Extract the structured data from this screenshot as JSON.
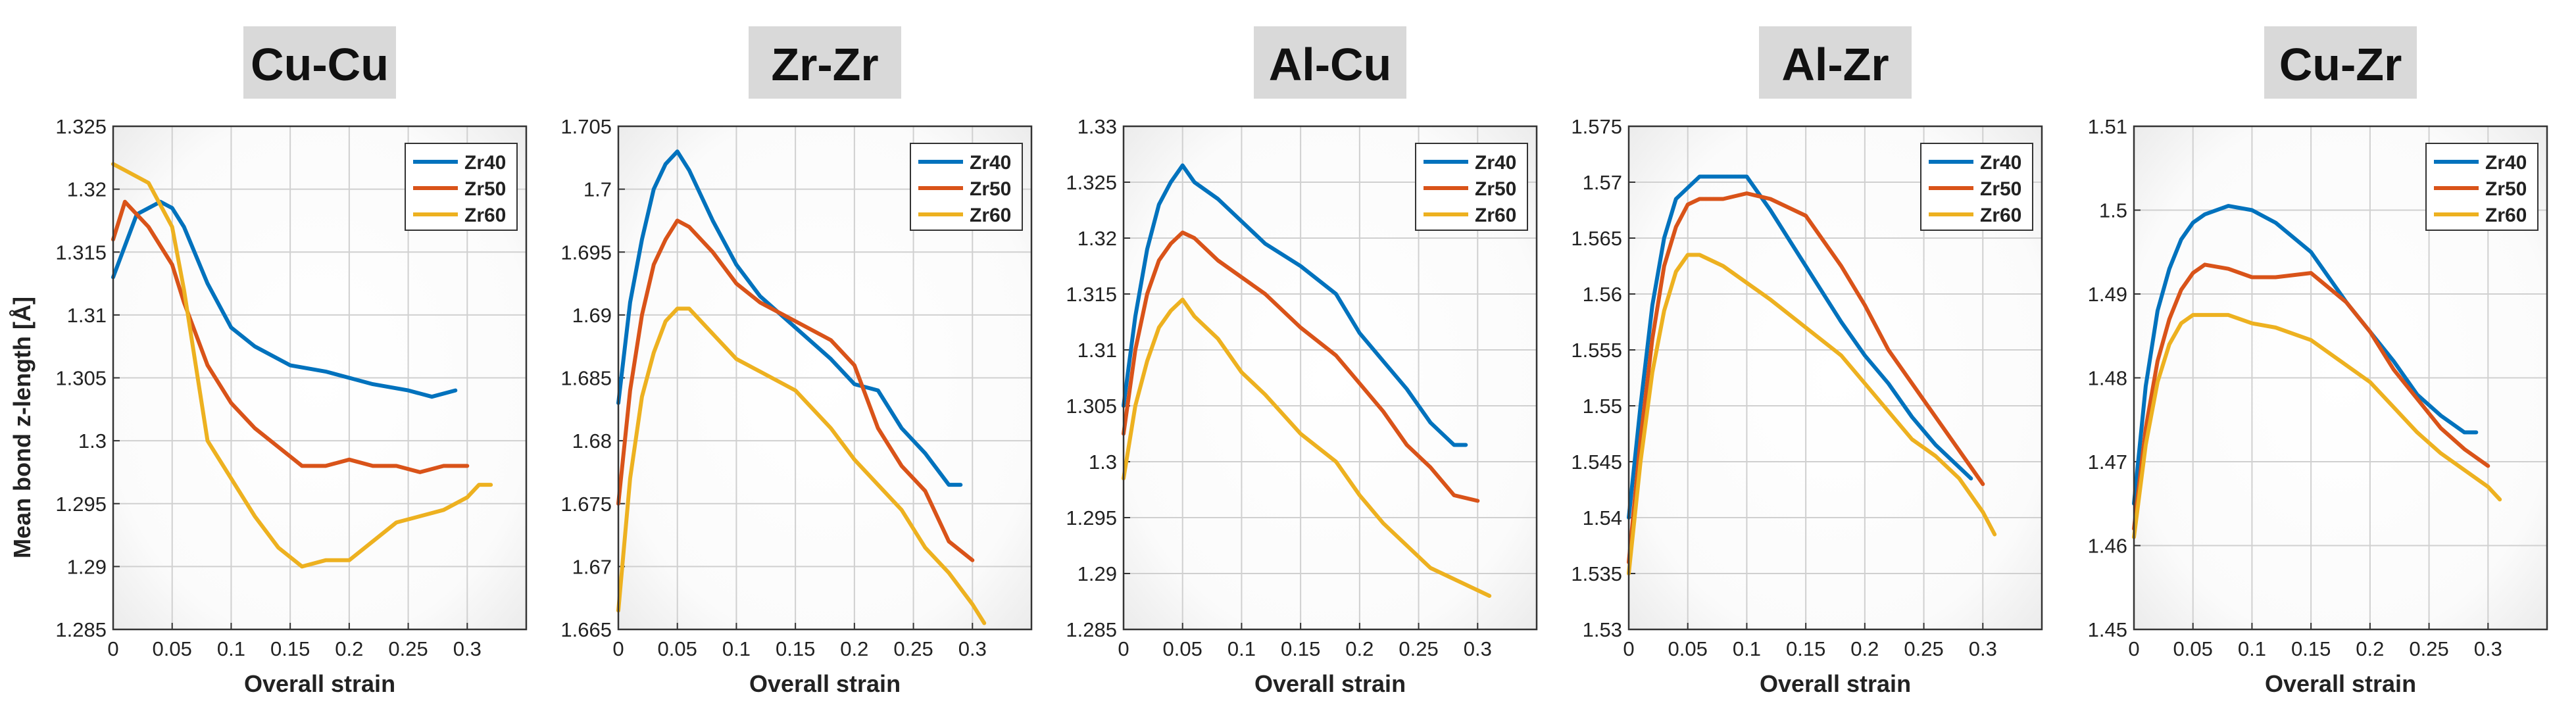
{
  "figure": {
    "ylabel": "Mean bond z-length  [Å]"
  },
  "chart_data": [
    {
      "type": "line",
      "title": "Cu-Cu",
      "xlabel": "Overall strain",
      "ylabel": "Mean bond z-length  [Å]",
      "xlim": [
        0,
        0.35
      ],
      "ylim": [
        1.285,
        1.325
      ],
      "xticks": [
        "0",
        "0.05",
        "0.1",
        "0.15",
        "0.2",
        "0.25",
        "0.3"
      ],
      "yticks": [
        "1.285",
        "1.29",
        "1.295",
        "1.3",
        "1.305",
        "1.31",
        "1.315",
        "1.32",
        "1.325"
      ],
      "grid": true,
      "legend": "top-right",
      "series": [
        {
          "name": "Zr40",
          "color": "#0072BD",
          "x": [
            0,
            0.02,
            0.04,
            0.05,
            0.06,
            0.08,
            0.1,
            0.12,
            0.15,
            0.18,
            0.2,
            0.22,
            0.25,
            0.27,
            0.29
          ],
          "y": [
            1.313,
            1.318,
            1.319,
            1.3185,
            1.317,
            1.3125,
            1.309,
            1.3075,
            1.306,
            1.3055,
            1.305,
            1.3045,
            1.304,
            1.3035,
            1.304
          ]
        },
        {
          "name": "Zr50",
          "color": "#D95319",
          "x": [
            0,
            0.01,
            0.03,
            0.05,
            0.06,
            0.08,
            0.1,
            0.12,
            0.14,
            0.16,
            0.18,
            0.2,
            0.22,
            0.24,
            0.26,
            0.28,
            0.3
          ],
          "y": [
            1.316,
            1.319,
            1.317,
            1.314,
            1.311,
            1.306,
            1.303,
            1.301,
            1.2995,
            1.298,
            1.298,
            1.2985,
            1.298,
            1.298,
            1.2975,
            1.298,
            1.298
          ]
        },
        {
          "name": "Zr60",
          "color": "#EDB120",
          "x": [
            0,
            0.01,
            0.03,
            0.05,
            0.06,
            0.07,
            0.08,
            0.1,
            0.12,
            0.14,
            0.16,
            0.18,
            0.2,
            0.22,
            0.24,
            0.26,
            0.28,
            0.3,
            0.31,
            0.32
          ],
          "y": [
            1.322,
            1.3215,
            1.3205,
            1.317,
            1.312,
            1.306,
            1.3,
            1.297,
            1.294,
            1.2915,
            1.29,
            1.2905,
            1.2905,
            1.292,
            1.2935,
            1.294,
            1.2945,
            1.2955,
            1.2965,
            1.2965
          ]
        }
      ]
    },
    {
      "type": "line",
      "title": "Zr-Zr",
      "xlabel": "Overall strain",
      "ylabel": "",
      "xlim": [
        0,
        0.35
      ],
      "ylim": [
        1.665,
        1.705
      ],
      "xticks": [
        "0",
        "0.05",
        "0.1",
        "0.15",
        "0.2",
        "0.25",
        "0.3"
      ],
      "yticks": [
        "1.665",
        "1.67",
        "1.675",
        "1.68",
        "1.685",
        "1.69",
        "1.695",
        "1.7",
        "1.705"
      ],
      "grid": true,
      "legend": "top-right",
      "series": [
        {
          "name": "Zr40",
          "color": "#0072BD",
          "x": [
            0,
            0.01,
            0.02,
            0.03,
            0.04,
            0.05,
            0.06,
            0.08,
            0.1,
            0.12,
            0.15,
            0.18,
            0.2,
            0.22,
            0.24,
            0.26,
            0.28,
            0.29
          ],
          "y": [
            1.683,
            1.691,
            1.696,
            1.7,
            1.702,
            1.703,
            1.7015,
            1.6975,
            1.694,
            1.6915,
            1.689,
            1.6865,
            1.6845,
            1.684,
            1.681,
            1.679,
            1.6765,
            1.6765
          ]
        },
        {
          "name": "Zr50",
          "color": "#D95319",
          "x": [
            0,
            0.01,
            0.02,
            0.03,
            0.04,
            0.05,
            0.06,
            0.08,
            0.1,
            0.12,
            0.15,
            0.18,
            0.2,
            0.22,
            0.24,
            0.26,
            0.28,
            0.3
          ],
          "y": [
            1.675,
            1.684,
            1.69,
            1.694,
            1.696,
            1.6975,
            1.697,
            1.695,
            1.6925,
            1.691,
            1.6895,
            1.688,
            1.686,
            1.681,
            1.678,
            1.676,
            1.672,
            1.6705
          ]
        },
        {
          "name": "Zr60",
          "color": "#EDB120",
          "x": [
            0,
            0.01,
            0.02,
            0.03,
            0.04,
            0.05,
            0.06,
            0.08,
            0.1,
            0.12,
            0.15,
            0.18,
            0.2,
            0.22,
            0.24,
            0.26,
            0.28,
            0.3,
            0.31
          ],
          "y": [
            1.6665,
            1.677,
            1.6835,
            1.687,
            1.6895,
            1.6905,
            1.6905,
            1.6885,
            1.6865,
            1.6855,
            1.684,
            1.681,
            1.6785,
            1.6765,
            1.6745,
            1.6715,
            1.6695,
            1.667,
            1.6655
          ]
        }
      ]
    },
    {
      "type": "line",
      "title": "Al-Cu",
      "xlabel": "Overall strain",
      "ylabel": "",
      "xlim": [
        0,
        0.35
      ],
      "ylim": [
        1.285,
        1.33
      ],
      "xticks": [
        "0",
        "0.05",
        "0.1",
        "0.15",
        "0.2",
        "0.25",
        "0.3"
      ],
      "yticks": [
        "1.285",
        "1.29",
        "1.295",
        "1.3",
        "1.305",
        "1.31",
        "1.315",
        "1.32",
        "1.325",
        "1.33"
      ],
      "grid": true,
      "legend": "top-right",
      "series": [
        {
          "name": "Zr40",
          "color": "#0072BD",
          "x": [
            0,
            0.01,
            0.02,
            0.03,
            0.04,
            0.05,
            0.06,
            0.08,
            0.1,
            0.12,
            0.15,
            0.18,
            0.2,
            0.22,
            0.24,
            0.26,
            0.28,
            0.29
          ],
          "y": [
            1.305,
            1.313,
            1.319,
            1.323,
            1.325,
            1.3265,
            1.325,
            1.3235,
            1.3215,
            1.3195,
            1.3175,
            1.315,
            1.3115,
            1.309,
            1.3065,
            1.3035,
            1.3015,
            1.3015
          ]
        },
        {
          "name": "Zr50",
          "color": "#D95319",
          "x": [
            0,
            0.01,
            0.02,
            0.03,
            0.04,
            0.05,
            0.06,
            0.08,
            0.1,
            0.12,
            0.15,
            0.18,
            0.2,
            0.22,
            0.24,
            0.26,
            0.28,
            0.3
          ],
          "y": [
            1.3025,
            1.31,
            1.315,
            1.318,
            1.3195,
            1.3205,
            1.32,
            1.318,
            1.3165,
            1.315,
            1.312,
            1.3095,
            1.307,
            1.3045,
            1.3015,
            1.2995,
            1.297,
            1.2965
          ]
        },
        {
          "name": "Zr60",
          "color": "#EDB120",
          "x": [
            0,
            0.01,
            0.02,
            0.03,
            0.04,
            0.05,
            0.06,
            0.08,
            0.1,
            0.12,
            0.15,
            0.18,
            0.2,
            0.22,
            0.24,
            0.26,
            0.28,
            0.3,
            0.31
          ],
          "y": [
            1.2985,
            1.305,
            1.309,
            1.312,
            1.3135,
            1.3145,
            1.313,
            1.311,
            1.308,
            1.306,
            1.3025,
            1.3,
            1.297,
            1.2945,
            1.2925,
            1.2905,
            1.2895,
            1.2885,
            1.288
          ]
        }
      ]
    },
    {
      "type": "line",
      "title": "Al-Zr",
      "xlabel": "Overall strain",
      "ylabel": "",
      "xlim": [
        0,
        0.35
      ],
      "ylim": [
        1.53,
        1.575
      ],
      "xticks": [
        "0",
        "0.05",
        "0.1",
        "0.15",
        "0.2",
        "0.25",
        "0.3"
      ],
      "yticks": [
        "1.53",
        "1.535",
        "1.54",
        "1.545",
        "1.55",
        "1.555",
        "1.56",
        "1.565",
        "1.57",
        "1.575"
      ],
      "grid": true,
      "legend": "top-right",
      "series": [
        {
          "name": "Zr40",
          "color": "#0072BD",
          "x": [
            0,
            0.01,
            0.02,
            0.03,
            0.04,
            0.05,
            0.06,
            0.08,
            0.1,
            0.12,
            0.15,
            0.18,
            0.2,
            0.22,
            0.24,
            0.26,
            0.28,
            0.29
          ],
          "y": [
            1.54,
            1.55,
            1.559,
            1.565,
            1.5685,
            1.5695,
            1.5705,
            1.5705,
            1.5705,
            1.5675,
            1.5625,
            1.5575,
            1.5545,
            1.552,
            1.549,
            1.5465,
            1.5445,
            1.5435
          ]
        },
        {
          "name": "Zr50",
          "color": "#D95319",
          "x": [
            0,
            0.01,
            0.02,
            0.03,
            0.04,
            0.05,
            0.06,
            0.08,
            0.1,
            0.12,
            0.15,
            0.18,
            0.2,
            0.22,
            0.24,
            0.26,
            0.28,
            0.3
          ],
          "y": [
            1.536,
            1.547,
            1.556,
            1.5625,
            1.566,
            1.568,
            1.5685,
            1.5685,
            1.569,
            1.5685,
            1.567,
            1.5625,
            1.559,
            1.555,
            1.552,
            1.549,
            1.546,
            1.543
          ]
        },
        {
          "name": "Zr60",
          "color": "#EDB120",
          "x": [
            0,
            0.01,
            0.02,
            0.03,
            0.04,
            0.05,
            0.06,
            0.08,
            0.1,
            0.12,
            0.15,
            0.18,
            0.2,
            0.22,
            0.24,
            0.26,
            0.28,
            0.3,
            0.31
          ],
          "y": [
            1.535,
            1.545,
            1.553,
            1.5585,
            1.562,
            1.5635,
            1.5635,
            1.5625,
            1.561,
            1.5595,
            1.557,
            1.5545,
            1.552,
            1.5495,
            1.547,
            1.5455,
            1.5435,
            1.5405,
            1.5385
          ]
        }
      ]
    },
    {
      "type": "line",
      "title": "Cu-Zr",
      "xlabel": "Overall strain",
      "ylabel": "",
      "xlim": [
        0,
        0.35
      ],
      "ylim": [
        1.45,
        1.51
      ],
      "xticks": [
        "0",
        "0.05",
        "0.1",
        "0.15",
        "0.2",
        "0.25",
        "0.3"
      ],
      "yticks": [
        "1.45",
        "1.46",
        "1.47",
        "1.48",
        "1.49",
        "1.5",
        "1.51"
      ],
      "grid": true,
      "legend": "top-right",
      "series": [
        {
          "name": "Zr40",
          "color": "#0072BD",
          "x": [
            0,
            0.01,
            0.02,
            0.03,
            0.04,
            0.05,
            0.06,
            0.08,
            0.1,
            0.12,
            0.15,
            0.18,
            0.2,
            0.22,
            0.24,
            0.26,
            0.28,
            0.29
          ],
          "y": [
            1.465,
            1.479,
            1.488,
            1.493,
            1.4965,
            1.4985,
            1.4995,
            1.5005,
            1.5,
            1.4985,
            1.495,
            1.489,
            1.4855,
            1.482,
            1.478,
            1.4755,
            1.4735,
            1.4735
          ]
        },
        {
          "name": "Zr50",
          "color": "#D95319",
          "x": [
            0,
            0.01,
            0.02,
            0.03,
            0.04,
            0.05,
            0.06,
            0.08,
            0.1,
            0.12,
            0.15,
            0.18,
            0.2,
            0.22,
            0.24,
            0.26,
            0.28,
            0.3
          ],
          "y": [
            1.462,
            1.474,
            1.482,
            1.487,
            1.4905,
            1.4925,
            1.4935,
            1.493,
            1.492,
            1.492,
            1.4925,
            1.489,
            1.4855,
            1.481,
            1.4775,
            1.474,
            1.4715,
            1.4695
          ]
        },
        {
          "name": "Zr60",
          "color": "#EDB120",
          "x": [
            0,
            0.01,
            0.02,
            0.03,
            0.04,
            0.05,
            0.06,
            0.08,
            0.1,
            0.12,
            0.15,
            0.18,
            0.2,
            0.22,
            0.24,
            0.26,
            0.28,
            0.3,
            0.31
          ],
          "y": [
            1.461,
            1.472,
            1.4795,
            1.484,
            1.4865,
            1.4875,
            1.4875,
            1.4875,
            1.4865,
            1.486,
            1.4845,
            1.4815,
            1.4795,
            1.4765,
            1.4735,
            1.471,
            1.469,
            1.467,
            1.4655
          ]
        }
      ]
    }
  ]
}
